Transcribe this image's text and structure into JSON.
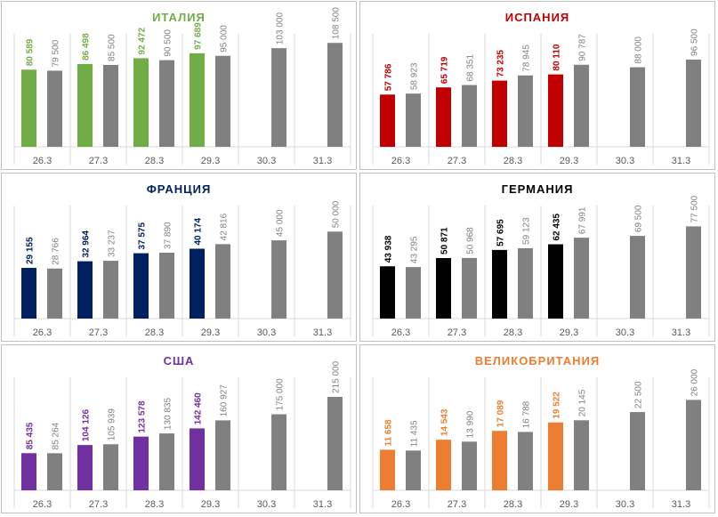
{
  "colors": {
    "gray": "#808080",
    "axis": "#d9d9d9",
    "tick_text": "#595959"
  },
  "chart_data": [
    {
      "type": "bar",
      "title": "ИТАЛИЯ",
      "color": "#70ad47",
      "categories": [
        "26.3",
        "27.3",
        "28.3",
        "29.3",
        "30.3",
        "31.3"
      ],
      "series": [
        {
          "values": [
            80589,
            86498,
            92472,
            97689,
            null,
            null
          ],
          "labels": [
            "80 589",
            "86 498",
            "92 472",
            "97 689",
            "",
            ""
          ]
        },
        {
          "values": [
            79500,
            85500,
            90500,
            95000,
            103000,
            108500
          ],
          "labels": [
            "79 500",
            "85 500",
            "90 500",
            "95 000",
            "103 000",
            "108 500"
          ]
        }
      ],
      "ylim": [
        0,
        118000
      ]
    },
    {
      "type": "bar",
      "title": "ИСПАНИЯ",
      "color": "#c00000",
      "categories": [
        "26.3",
        "27.3",
        "28.3",
        "29.3",
        "30.3",
        "31.3"
      ],
      "series": [
        {
          "values": [
            57786,
            65719,
            73235,
            80110,
            null,
            null
          ],
          "labels": [
            "57 786",
            "65 719",
            "73 235",
            "80 110",
            "",
            ""
          ]
        },
        {
          "values": [
            58923,
            68351,
            78945,
            90787,
            88000,
            96500
          ],
          "labels": [
            "58 923",
            "68 351",
            "78 945",
            "90 787",
            "88 000",
            "96 500"
          ]
        }
      ],
      "ylim": [
        0,
        125000
      ]
    },
    {
      "type": "bar",
      "title": "ФРАНЦИЯ",
      "color": "#002060",
      "categories": [
        "26.3",
        "27.3",
        "28.3",
        "29.3",
        "30.3",
        "31.3"
      ],
      "series": [
        {
          "values": [
            29155,
            32964,
            37575,
            40174,
            null,
            null
          ],
          "labels": [
            "29 155",
            "32 964",
            "37 575",
            "40 174",
            "",
            ""
          ]
        },
        {
          "values": [
            28766,
            33237,
            37890,
            42816,
            45000,
            50000
          ],
          "labels": [
            "28 766",
            "33 237",
            "37 890",
            "42 816",
            "45 000",
            "50 000"
          ]
        }
      ],
      "ylim": [
        0,
        65000
      ]
    },
    {
      "type": "bar",
      "title": "ГЕРМАНИЯ",
      "color": "#000000",
      "categories": [
        "26.3",
        "27.3",
        "28.3",
        "29.3",
        "30.3",
        "31.3"
      ],
      "series": [
        {
          "values": [
            43938,
            50871,
            57695,
            62435,
            null,
            null
          ],
          "labels": [
            "43 938",
            "50 871",
            "57 695",
            "62 435",
            "",
            ""
          ]
        },
        {
          "values": [
            43295,
            50968,
            59123,
            67991,
            69500,
            77500
          ],
          "labels": [
            "43 295",
            "50 968",
            "59 123",
            "67 991",
            "69 500",
            "77 500"
          ]
        }
      ],
      "ylim": [
        0,
        95000
      ]
    },
    {
      "type": "bar",
      "title": "США",
      "color": "#7030a0",
      "categories": [
        "26.3",
        "27.3",
        "28.3",
        "29.3",
        "30.3",
        "31.3"
      ],
      "series": [
        {
          "values": [
            85435,
            104126,
            123578,
            142460,
            null,
            null
          ],
          "labels": [
            "85 435",
            "104 126",
            "123 578",
            "142 460",
            "",
            ""
          ]
        },
        {
          "values": [
            85264,
            105939,
            130835,
            160927,
            175000,
            215000
          ],
          "labels": [
            "85 264",
            "105 939",
            "130 835",
            "160 927",
            "175 000",
            "215 000"
          ]
        }
      ],
      "ylim": [
        0,
        260000
      ]
    },
    {
      "type": "bar",
      "title": "ВЕЛИКОБРИТАНИЯ",
      "color": "#ed7d31",
      "categories": [
        "26.3",
        "27.3",
        "28.3",
        "29.3",
        "30.3",
        "31.3"
      ],
      "series": [
        {
          "values": [
            11658,
            14543,
            17089,
            19522,
            null,
            null
          ],
          "labels": [
            "11 658",
            "14 543",
            "17 089",
            "19 522",
            "",
            ""
          ]
        },
        {
          "values": [
            11435,
            13990,
            16788,
            20145,
            22500,
            26000
          ],
          "labels": [
            "11 435",
            "13 990",
            "16 788",
            "20 145",
            "22 500",
            "26 000"
          ]
        }
      ],
      "ylim": [
        0,
        32500
      ]
    }
  ]
}
